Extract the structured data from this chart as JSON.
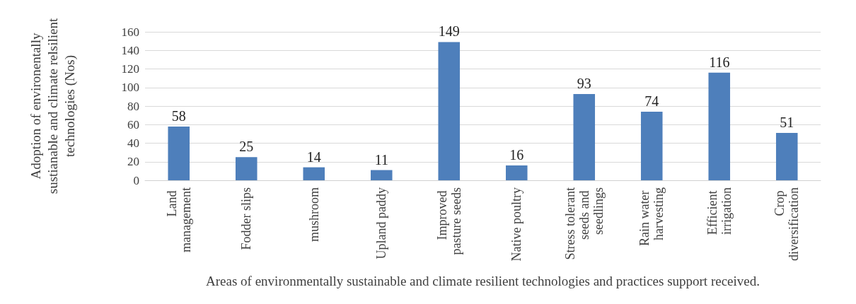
{
  "chart_data": {
    "type": "bar",
    "xlabel": "Areas of environmentally sustainable and climate resilient technologies and practices support received.",
    "ylabel": "Adoption of environentally sustianable and climate relsilient technologies (Nos)",
    "categories": [
      "Land management",
      "Fodder slips",
      "mushroom",
      "Upland paddy",
      "Improved pasture seeds",
      "Native poultry",
      "Stress tolerant seeds and seedlings",
      "Rain water harvesting",
      "Efficient irrigation",
      "Crop diversification"
    ],
    "values": [
      58,
      25,
      14,
      11,
      149,
      16,
      93,
      74,
      116,
      51
    ],
    "color": "#4e7fbb",
    "ylim": [
      0,
      160
    ],
    "yticks": [
      0,
      20,
      40,
      60,
      80,
      100,
      120,
      140,
      160
    ],
    "grid": "y",
    "data_labels": true
  }
}
